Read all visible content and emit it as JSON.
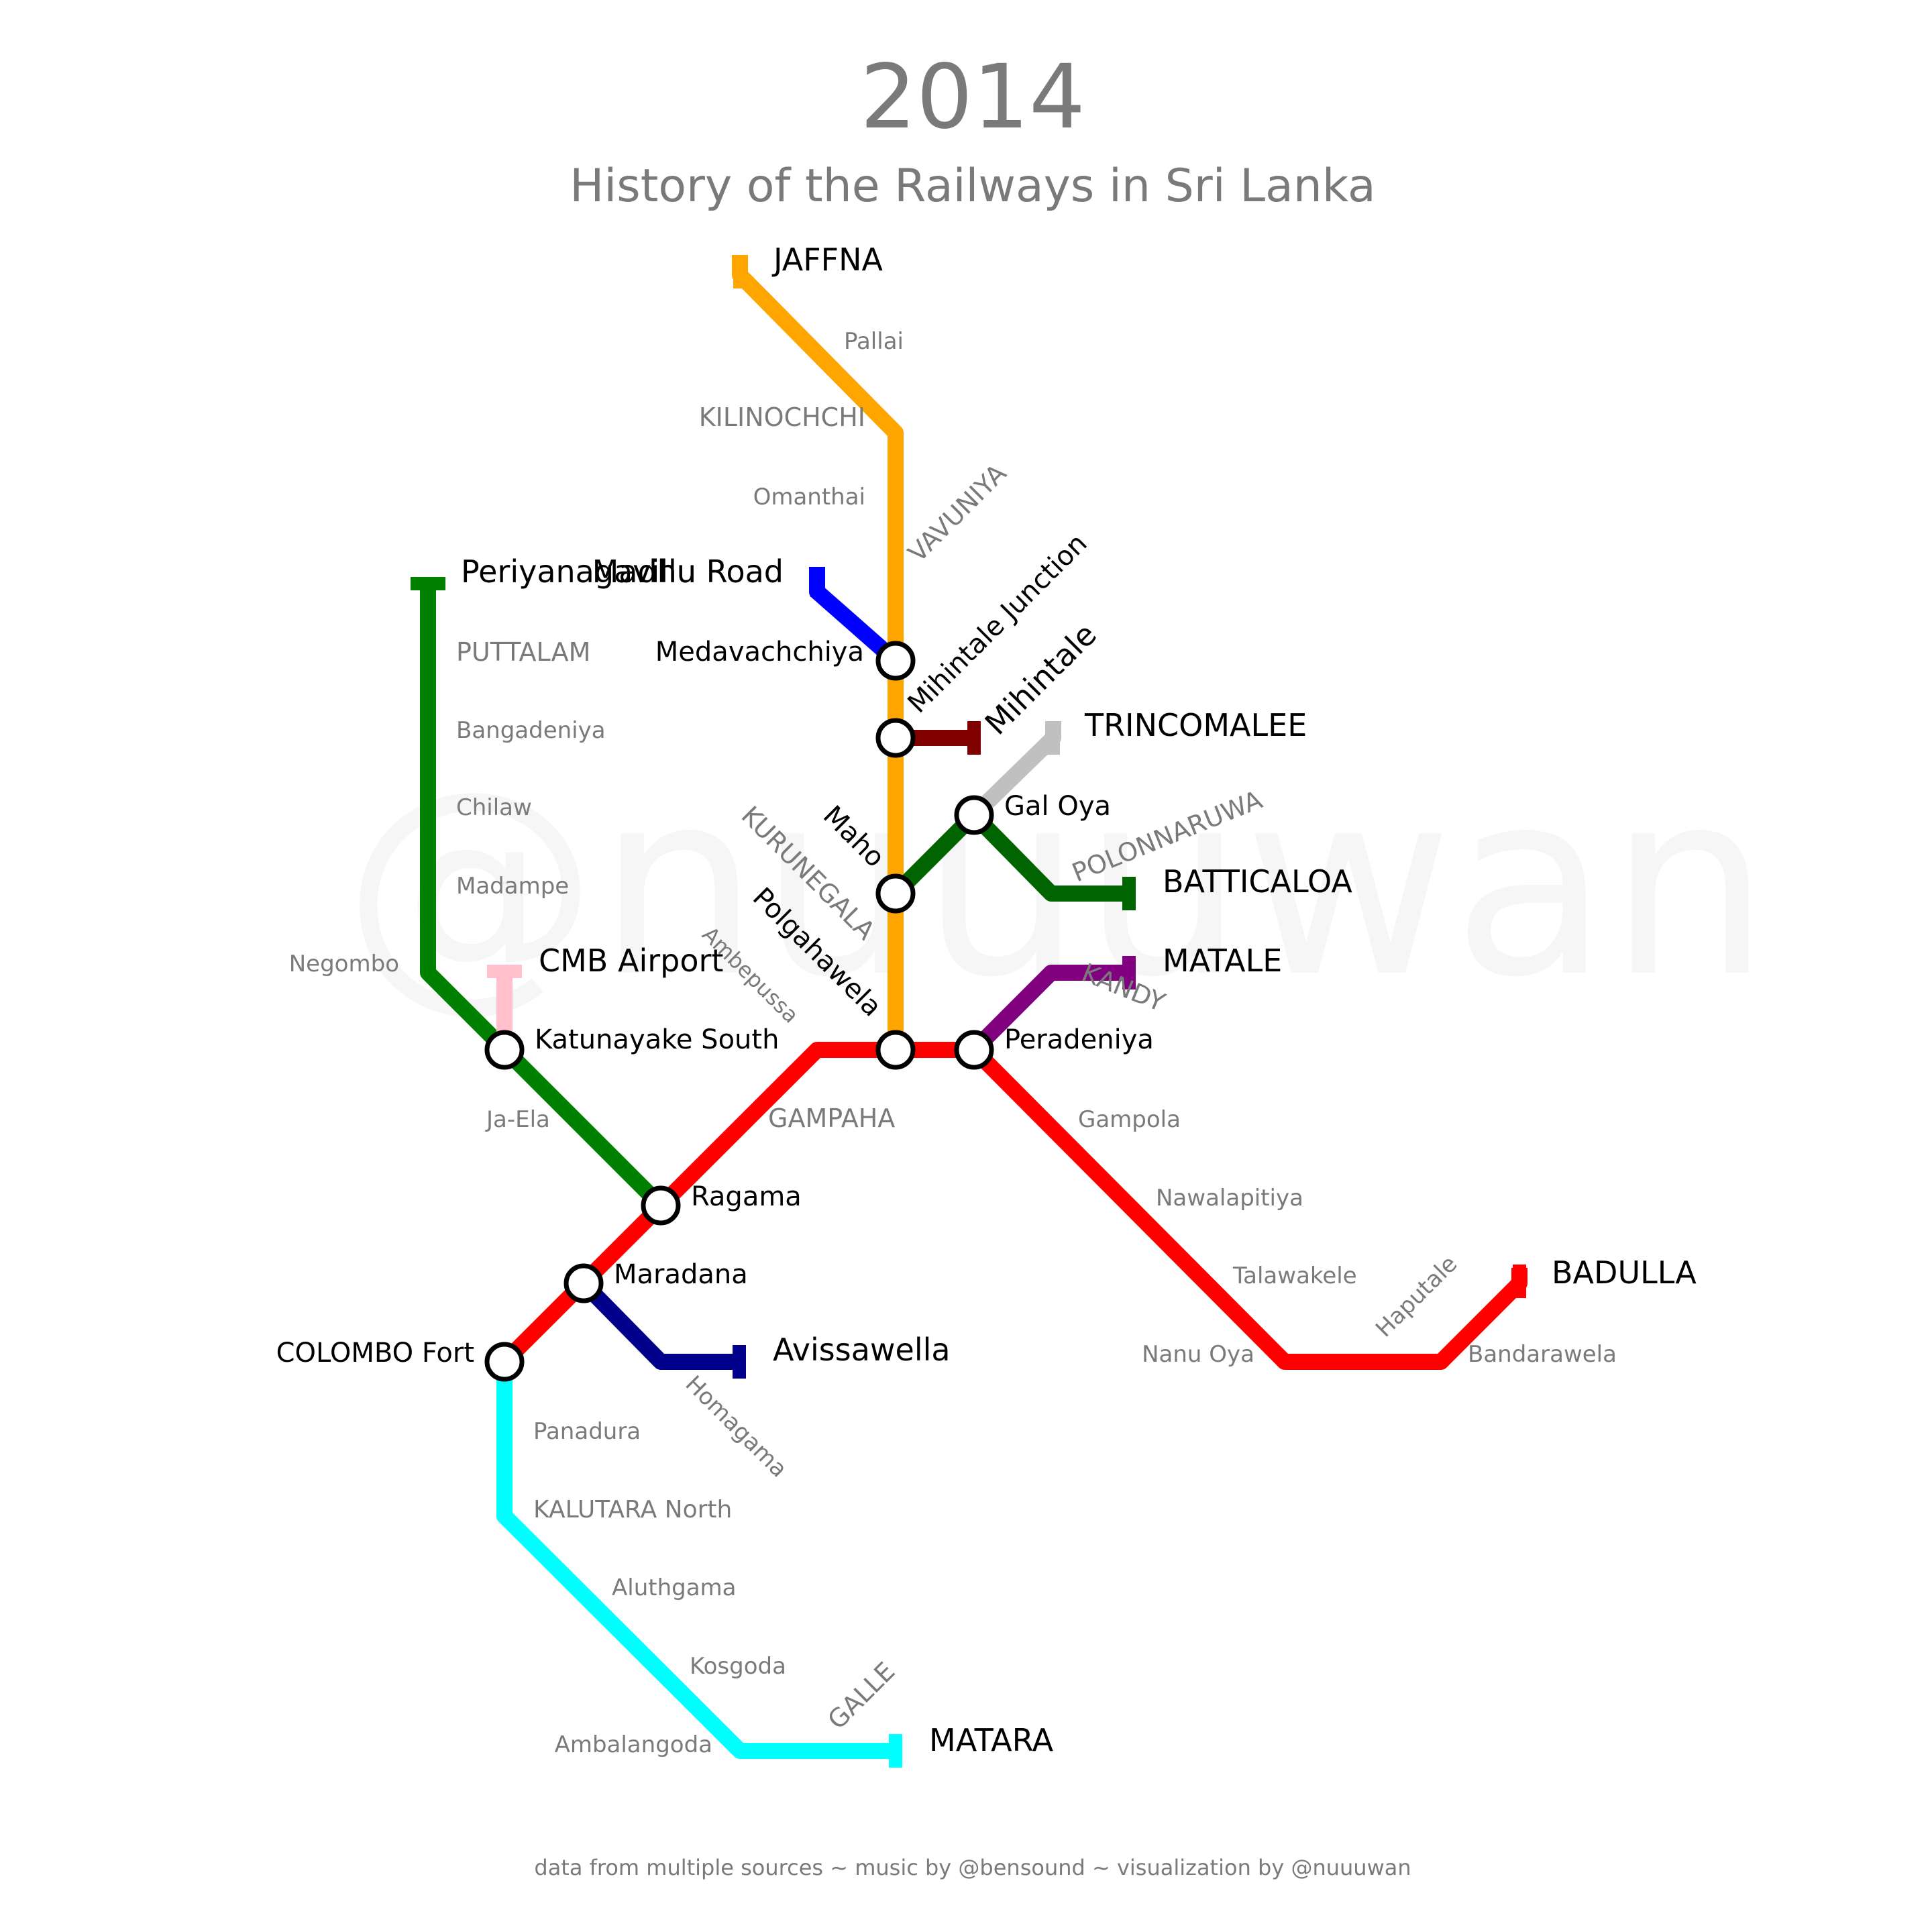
{
  "header": {
    "year": "2014",
    "subtitle": "History of the Railways in Sri Lanka"
  },
  "watermark": "@nuuuwan",
  "footer": "data from multiple sources ~ music by @bensound ~ visualization by @nuuuwan",
  "colors": {
    "northern": "#FFA500",
    "main": "#FF0000",
    "coastal": "#00FFFF",
    "puttalam": "#008000",
    "batticaloa": "#006400",
    "trincomalee": "#C0C0C0",
    "matale": "#800080",
    "mihintale": "#800000",
    "mannar": "#0000FF",
    "kelani_valley": "#00008B",
    "airport": "#FFC0CB",
    "label_grey": "#7a7a7a",
    "label_black": "#000000"
  },
  "stations": {
    "jaffna": "JAFFNA",
    "pallai": "Pallai",
    "kilinochchi": "KILINOCHCHI",
    "omanthai": "Omanthai",
    "vavuniya": "VAVUNIYA",
    "madhu_road": "Madhu Road",
    "medavachchiya": "Medavachchiya",
    "mihintale_junction": "Mihintale Junction",
    "mihintale": "Mihintale",
    "trincomalee": "TRINCOMALEE",
    "gal_oya": "Gal Oya",
    "polonnaruwa": "POLONNARUWA",
    "batticaloa": "BATTICALOA",
    "maho": "Maho",
    "kurunegala": "KURUNEGALA",
    "polgahawela": "Polgahawela",
    "ambepussa": "Ambepussa",
    "matale": "MATALE",
    "kandy": "KANDY",
    "peradeniya": "Peradeniya",
    "periyanagavillu": "Periyanagavillu",
    "puttalam": "PUTTALAM",
    "bangadeniya": "Bangadeniya",
    "chilaw": "Chilaw",
    "madampe": "Madampe",
    "negombo": "Negombo",
    "cmb_airport": "CMB Airport",
    "katunayake_south": "Katunayake South",
    "ja_ela": "Ja-Ela",
    "gampaha": "GAMPAHA",
    "ragama": "Ragama",
    "maradana": "Maradana",
    "colombo_fort": "COLOMBO Fort",
    "avissawella": "Avissawella",
    "homagama": "Homagama",
    "gampola": "Gampola",
    "nawalapitiya": "Nawalapitiya",
    "talawakele": "Talawakele",
    "nanu_oya": "Nanu Oya",
    "haputale": "Haputale",
    "bandarawela": "Bandarawela",
    "badulla": "BADULLA",
    "panadura": "Panadura",
    "kalutara_north": "KALUTARA North",
    "aluthgama": "Aluthgama",
    "kosgoda": "Kosgoda",
    "ambalangoda": "Ambalangoda",
    "galle": "GALLE",
    "matara": "MATARA"
  }
}
